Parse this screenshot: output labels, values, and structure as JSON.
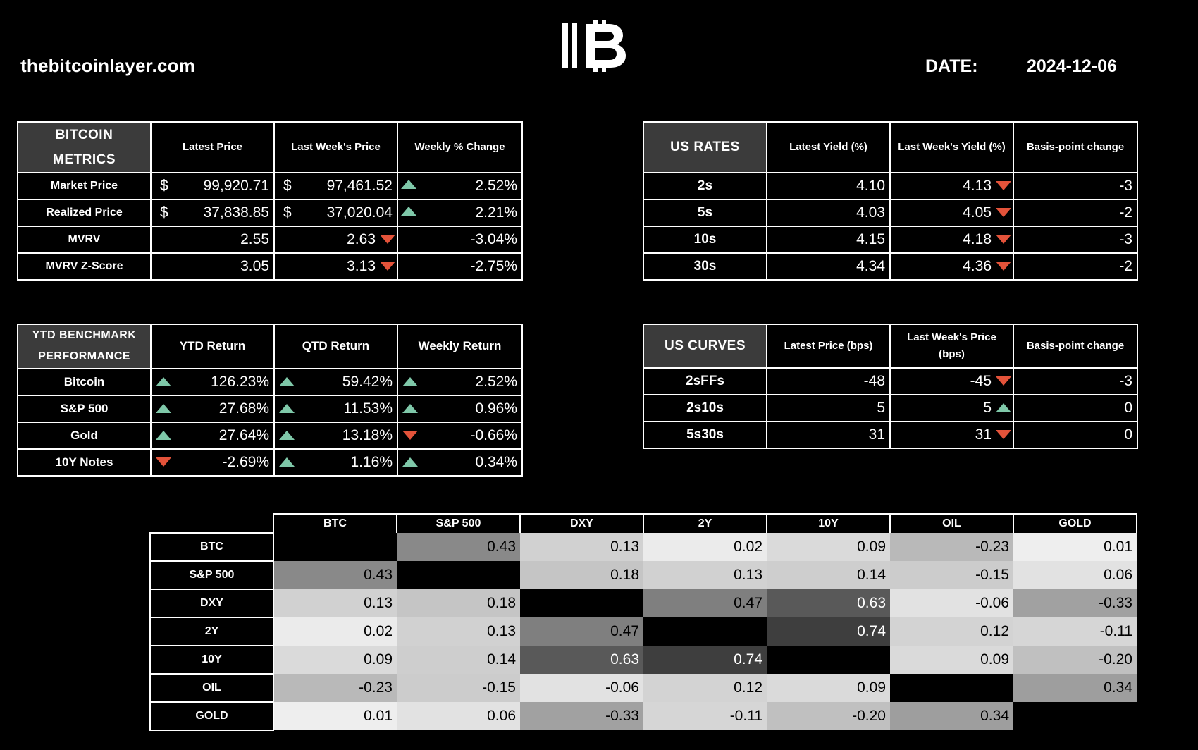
{
  "header": {
    "site": "thebitcoinlayer.com",
    "date_label": "DATE:",
    "date_value": "2024-12-06"
  },
  "colors": {
    "up": "#7fc8a9",
    "down": "#e4533a",
    "header_bg": "#3b3b3b"
  },
  "bitcoin_metrics": {
    "corner": [
      "BITCOIN",
      "METRICS"
    ],
    "headers": [
      "Latest Price",
      "Last Week's Price",
      "Weekly % Change"
    ],
    "rows": [
      {
        "label": "Market Price",
        "cur1": "$",
        "latest": "99,920.71",
        "cur2": "$",
        "last_week": "97,461.52",
        "dir": "up",
        "change": "2.52%"
      },
      {
        "label": "Realized Price",
        "cur1": "$",
        "latest": "37,838.85",
        "cur2": "$",
        "last_week": "37,020.04",
        "dir": "up",
        "change": "2.21%"
      },
      {
        "label": "MVRV",
        "cur1": "",
        "latest": "2.55",
        "cur2": "",
        "last_week": "2.63",
        "dir": "down",
        "change": "-3.04%"
      },
      {
        "label": "MVRV Z-Score",
        "cur1": "",
        "latest": "3.05",
        "cur2": "",
        "last_week": "3.13",
        "dir": "down",
        "change": "-2.75%"
      }
    ]
  },
  "us_rates": {
    "corner": "US RATES",
    "headers": [
      "Latest Yield (%)",
      "Last Week's Yield (%)",
      "Basis-point change"
    ],
    "rows": [
      {
        "label": "2s",
        "latest": "4.10",
        "last_week": "4.13",
        "dir": "down",
        "change": "-3"
      },
      {
        "label": "5s",
        "latest": "4.03",
        "last_week": "4.05",
        "dir": "down",
        "change": "-2"
      },
      {
        "label": "10s",
        "latest": "4.15",
        "last_week": "4.18",
        "dir": "down",
        "change": "-3"
      },
      {
        "label": "30s",
        "latest": "4.34",
        "last_week": "4.36",
        "dir": "down",
        "change": "-2"
      }
    ]
  },
  "ytd_benchmark": {
    "corner": [
      "YTD BENCHMARK",
      "PERFORMANCE"
    ],
    "headers": [
      "YTD Return",
      "QTD Return",
      "Weekly Return"
    ],
    "rows": [
      {
        "label": "Bitcoin",
        "ytd_dir": "up",
        "ytd": "126.23%",
        "qtd_dir": "up",
        "qtd": "59.42%",
        "wk_dir": "up",
        "wk": "2.52%"
      },
      {
        "label": "S&P 500",
        "ytd_dir": "up",
        "ytd": "27.68%",
        "qtd_dir": "up",
        "qtd": "11.53%",
        "wk_dir": "up",
        "wk": "0.96%"
      },
      {
        "label": "Gold",
        "ytd_dir": "up",
        "ytd": "27.64%",
        "qtd_dir": "up",
        "qtd": "13.18%",
        "wk_dir": "down",
        "wk": "-0.66%"
      },
      {
        "label": "10Y Notes",
        "ytd_dir": "down",
        "ytd": "-2.69%",
        "qtd_dir": "up",
        "qtd": "1.16%",
        "wk_dir": "up",
        "wk": "0.34%"
      }
    ]
  },
  "us_curves": {
    "corner": "US CURVES",
    "headers": [
      "Latest Price (bps)",
      "Last Week's Price (bps)",
      "Basis-point change"
    ],
    "rows": [
      {
        "label": "2sFFs",
        "latest": "-48",
        "last_week": "-45",
        "dir": "down",
        "change": "-3"
      },
      {
        "label": "2s10s",
        "latest": "5",
        "last_week": "5",
        "dir": "up",
        "change": "0"
      },
      {
        "label": "5s30s",
        "latest": "31",
        "last_week": "31",
        "dir": "down",
        "change": "0"
      }
    ]
  },
  "correlation": {
    "columns": [
      "BTC",
      "S&P 500",
      "DXY",
      "2Y",
      "10Y",
      "OIL",
      "GOLD"
    ],
    "rows": [
      {
        "label": "BTC",
        "values": [
          null,
          "0.43",
          "0.13",
          "0.02",
          "0.09",
          "-0.23",
          "0.01"
        ]
      },
      {
        "label": "S&P 500",
        "values": [
          "0.43",
          null,
          "0.18",
          "0.13",
          "0.14",
          "-0.15",
          "0.06"
        ]
      },
      {
        "label": "DXY",
        "values": [
          "0.13",
          "0.18",
          null,
          "0.47",
          "0.63",
          "-0.06",
          "-0.33"
        ]
      },
      {
        "label": "2Y",
        "values": [
          "0.02",
          "0.13",
          "0.47",
          null,
          "0.74",
          "0.12",
          "-0.11"
        ]
      },
      {
        "label": "10Y",
        "values": [
          "0.09",
          "0.14",
          "0.63",
          "0.74",
          null,
          "0.09",
          "-0.20"
        ]
      },
      {
        "label": "OIL",
        "values": [
          "-0.23",
          "-0.15",
          "-0.06",
          "0.12",
          "0.09",
          null,
          "0.34"
        ]
      },
      {
        "label": "GOLD",
        "values": [
          "0.01",
          "0.06",
          "-0.33",
          "-0.11",
          "-0.20",
          "0.34",
          null
        ]
      }
    ]
  }
}
